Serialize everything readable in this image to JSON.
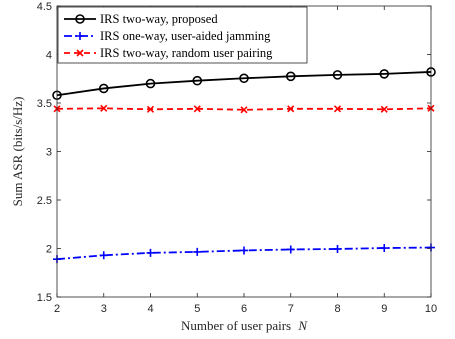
{
  "chart_data": {
    "type": "line",
    "xlabel": "Number of user pairs",
    "xlabel_var": "N",
    "ylabel": "Sum ASR (bits/s/Hz)",
    "x": [
      2,
      3,
      4,
      5,
      6,
      7,
      8,
      9,
      10
    ],
    "xlim": [
      2,
      10
    ],
    "ylim": [
      1.5,
      4.5
    ],
    "xticks": [
      "2",
      "3",
      "4",
      "5",
      "6",
      "7",
      "8",
      "9",
      "10"
    ],
    "yticks": [
      "1.5",
      "2",
      "2.5",
      "3",
      "3.5",
      "4",
      "4.5"
    ],
    "ytick_values": [
      1.5,
      2,
      2.5,
      3,
      3.5,
      4,
      4.5
    ],
    "grid": false,
    "legend_position": "top-left",
    "series": [
      {
        "name": "IRS two-way, proposed",
        "color": "#000000",
        "line_style": "solid",
        "marker": "circle",
        "values": [
          3.58,
          3.65,
          3.7,
          3.73,
          3.755,
          3.775,
          3.79,
          3.8,
          3.82
        ]
      },
      {
        "name": "IRS one-way, user-aided jamming",
        "color": "#0000ff",
        "line_style": "dash-dot",
        "marker": "plus",
        "values": [
          1.89,
          1.93,
          1.955,
          1.965,
          1.98,
          1.99,
          1.995,
          2.005,
          2.01
        ]
      },
      {
        "name": "IRS two-way, random user pairing",
        "color": "#ff0000",
        "line_style": "dashed",
        "marker": "x",
        "values": [
          3.44,
          3.445,
          3.435,
          3.44,
          3.43,
          3.44,
          3.44,
          3.435,
          3.445
        ]
      }
    ]
  }
}
